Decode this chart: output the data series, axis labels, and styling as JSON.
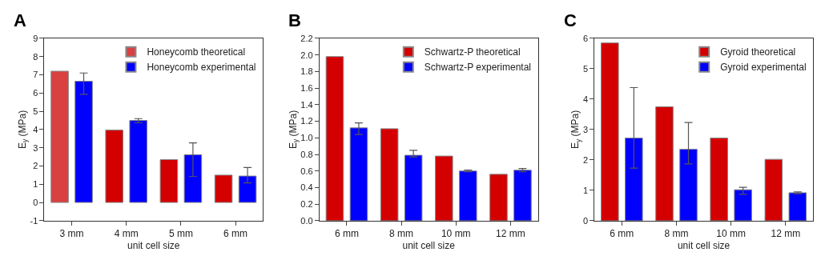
{
  "chart_data": [
    {
      "type": "bar",
      "title": "A",
      "xlabel": "unit cell size",
      "ylabel": "E$_{y}$ (MPa)",
      "categories": [
        "3 mm",
        "4 mm",
        "5 mm",
        "6 mm"
      ],
      "ylim": [
        -1,
        9
      ],
      "yticks": [
        -1,
        0,
        1,
        2,
        3,
        4,
        5,
        6,
        7,
        8,
        9
      ],
      "legend": "top right",
      "series": [
        {
          "name": "Honeycomb theoretical",
          "color": "#d40000",
          "colors": [
            "#d94040",
            "#d40000",
            "#d40000",
            "#d40000"
          ],
          "values": [
            7.2,
            3.97,
            2.35,
            1.5
          ]
        },
        {
          "name": "Honeycomb experimental",
          "color": "#0000ff",
          "values": [
            6.65,
            4.5,
            2.62,
            1.45
          ],
          "errors": [
            [
              5.93,
              7.1
            ],
            [
              4.37,
              4.6
            ],
            [
              1.43,
              3.27
            ],
            [
              1.07,
              1.92
            ]
          ]
        }
      ]
    },
    {
      "type": "bar",
      "title": "B",
      "xlabel": "unit cell size",
      "ylabel": "E$_{y}$ (MPa)",
      "categories": [
        "6 mm",
        "8 mm",
        "10 mm",
        "12 mm"
      ],
      "ylim": [
        0,
        2.2
      ],
      "yticks": [
        {
          "value": 0,
          "label": "0.0"
        },
        0.2,
        0.4,
        0.6,
        0.8,
        {
          "value": 1,
          "label": "1.0"
        },
        1.2,
        1.4,
        1.6,
        1.8,
        {
          "value": 2,
          "label": "2.0"
        },
        2.2
      ],
      "legend": "top right",
      "series": [
        {
          "name": "Schwartz-P theoretical",
          "color": "#d40000",
          "values": [
            1.98,
            1.11,
            0.78,
            0.56
          ]
        },
        {
          "name": "Schwartz-P experimental",
          "color": "#0000ff",
          "values": [
            1.12,
            0.79,
            0.6,
            0.61
          ],
          "errors": [
            [
              1.04,
              1.18
            ],
            [
              0.77,
              0.85
            ],
            [
              0.59,
              0.61
            ],
            [
              0.59,
              0.63
            ]
          ]
        }
      ]
    },
    {
      "type": "bar",
      "title": "C",
      "xlabel": "unit cell size",
      "ylabel": "E$_{y}$ (MPa)",
      "categories": [
        "6 mm",
        "8 mm",
        "10 mm",
        "12 mm"
      ],
      "ylim": [
        0,
        6
      ],
      "yticks": [
        0,
        1,
        2,
        3,
        4,
        5,
        6
      ],
      "legend": "top right",
      "series": [
        {
          "name": "Gyroid theoretical",
          "color": "#d40000",
          "values": [
            5.85,
            3.75,
            2.72,
            2.02
          ]
        },
        {
          "name": "Gyroid experimental",
          "color": "#0000ff",
          "values": [
            2.72,
            2.35,
            1.02,
            0.92
          ],
          "errors": [
            [
              1.73,
              4.38
            ],
            [
              1.87,
              3.23
            ],
            [
              0.87,
              1.1
            ],
            [
              0.89,
              0.95
            ]
          ]
        }
      ]
    }
  ]
}
